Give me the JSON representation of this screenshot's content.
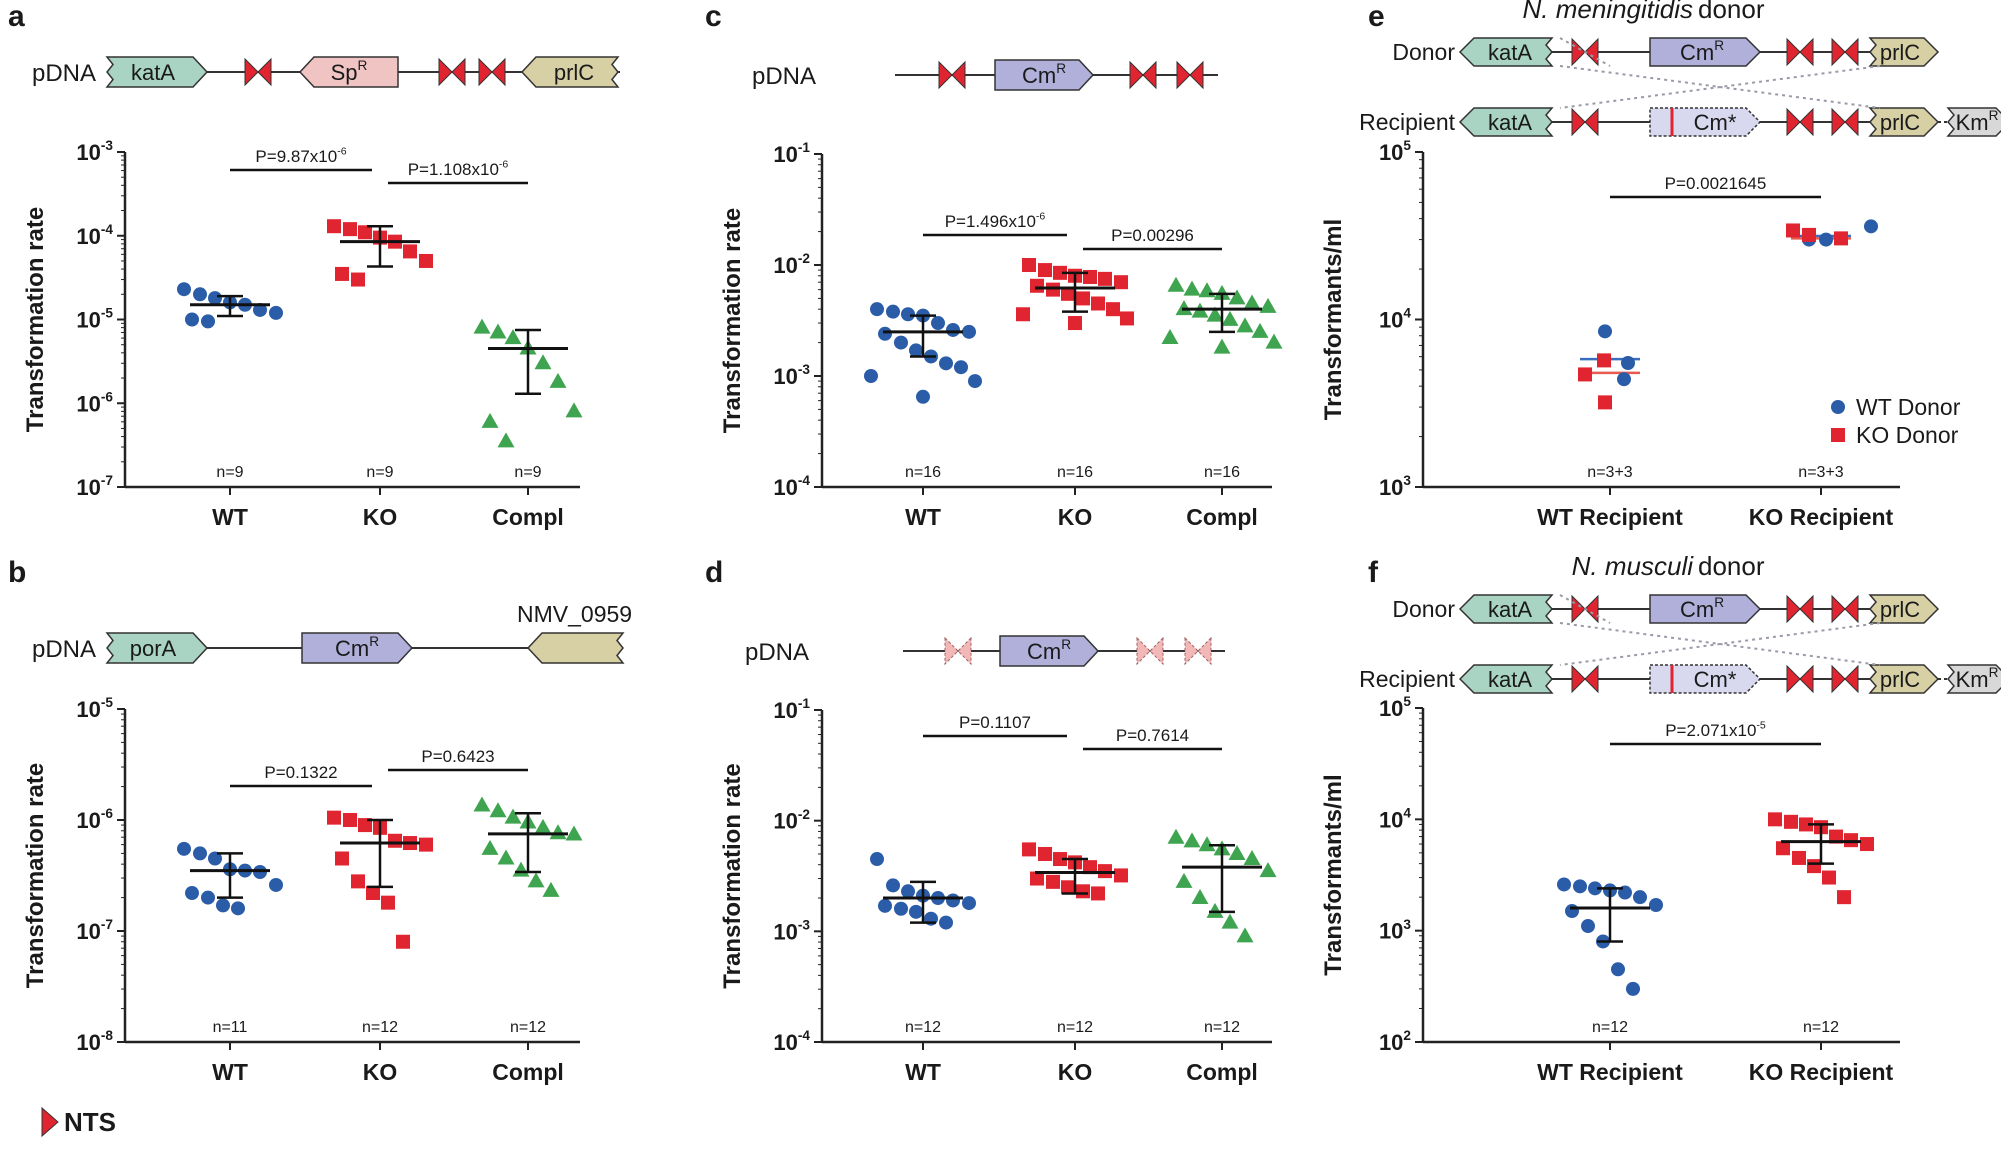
{
  "colors": {
    "wt": "#2a5ca8",
    "ko": "#e02530",
    "compl": "#3fa44f",
    "nts": "#e02530",
    "nts_faded": "#f2b8b8",
    "green_gene": "#a9d3c2",
    "olive_gene": "#d6d0a4",
    "pink_gene": "#f1c4c4",
    "purple_gene": "#b0b0da",
    "light_purple_gene": "#d8d8ee",
    "gray_gene": "#d8d8d8",
    "cross_line": "#9a9aa8",
    "median_line": "#e85a4f",
    "mean_line": "#3a6cc0"
  },
  "legend_nts": "NTS",
  "chart_data": [
    {
      "panel": "a",
      "type": "scatter",
      "construct": {
        "prefix": "pDNA",
        "genes": [
          {
            "label": "katA",
            "color": "green_gene",
            "dir": "right"
          },
          {
            "label": "SpR",
            "label_main": "Sp",
            "label_sup": "R",
            "color": "pink_gene",
            "dir": "left"
          },
          {
            "label": "prlC",
            "color": "olive_gene",
            "dir": "left"
          }
        ],
        "nts_count": 3
      },
      "ylabel": "Transformation rate",
      "yscale": "log",
      "ylim": [
        1e-07,
        0.001
      ],
      "yticks": [
        {
          "base": "10",
          "exp": "-3"
        },
        {
          "base": "10",
          "exp": "-4"
        },
        {
          "base": "10",
          "exp": "-5"
        },
        {
          "base": "10",
          "exp": "-6"
        },
        {
          "base": "10",
          "exp": "-7"
        }
      ],
      "categories": [
        "WT",
        "KO",
        "Compl"
      ],
      "n_labels": [
        "n=9",
        "n=9",
        "n=9"
      ],
      "series": [
        {
          "name": "WT",
          "color": "wt",
          "shape": "circle",
          "values": [
            2.3e-05,
            2e-05,
            1.8e-05,
            1.6e-05,
            1.5e-05,
            1.3e-05,
            1.2e-05,
            1e-05,
            9.5e-06
          ],
          "mean": 1.5e-05,
          "sd_low": 1.1e-05,
          "sd_high": 1.9e-05
        },
        {
          "name": "KO",
          "color": "ko",
          "shape": "square",
          "values": [
            0.00013,
            0.00012,
            0.00011,
            9.5e-05,
            8.5e-05,
            6.5e-05,
            5e-05,
            3.5e-05,
            3e-05
          ],
          "mean": 8.5e-05,
          "sd_low": 4.3e-05,
          "sd_high": 0.00013
        },
        {
          "name": "Compl",
          "color": "compl",
          "shape": "triangle",
          "values": [
            8e-06,
            7e-06,
            6e-06,
            4.5e-06,
            3e-06,
            1.8e-06,
            8e-07,
            6e-07,
            3.5e-07
          ],
          "mean": 4.5e-06,
          "sd_low": 1.3e-06,
          "sd_high": 7.5e-06
        }
      ],
      "pvalues": [
        {
          "main": "P=9.87x10",
          "exp": "-6",
          "from": 0,
          "to": 1
        },
        {
          "main": "P=1.108x10",
          "exp": "-6",
          "from": 1,
          "to": 2
        }
      ]
    },
    {
      "panel": "b",
      "type": "scatter",
      "construct": {
        "prefix": "pDNA",
        "genes": [
          {
            "label": "porA",
            "color": "green_gene",
            "dir": "right"
          },
          {
            "label": "CmR",
            "label_main": "Cm",
            "label_sup": "R",
            "color": "purple_gene",
            "dir": "right"
          },
          {
            "label": "",
            "color": "olive_gene",
            "dir": "left"
          }
        ],
        "nts_count": 0,
        "annotation": "NMV_0959"
      },
      "ylabel": "Transformation rate",
      "yscale": "log",
      "ylim": [
        1e-08,
        1e-05
      ],
      "yticks": [
        {
          "base": "10",
          "exp": "-5"
        },
        {
          "base": "10",
          "exp": "-6"
        },
        {
          "base": "10",
          "exp": "-7"
        },
        {
          "base": "10",
          "exp": "-8"
        }
      ],
      "categories": [
        "WT",
        "KO",
        "Compl"
      ],
      "n_labels": [
        "n=11",
        "n=12",
        "n=12"
      ],
      "series": [
        {
          "name": "WT",
          "color": "wt",
          "shape": "circle",
          "values": [
            5.5e-07,
            5e-07,
            4.5e-07,
            3.6e-07,
            3.5e-07,
            3.4e-07,
            2.6e-07,
            2.2e-07,
            2e-07,
            1.7e-07,
            1.6e-07
          ],
          "mean": 3.5e-07,
          "sd_low": 2e-07,
          "sd_high": 5e-07
        },
        {
          "name": "KO",
          "color": "ko",
          "shape": "square",
          "values": [
            1.05e-06,
            1e-06,
            9e-07,
            8.5e-07,
            6.5e-07,
            6.2e-07,
            6e-07,
            4.5e-07,
            2.8e-07,
            2.2e-07,
            1.8e-07,
            8e-08
          ],
          "mean": 6.2e-07,
          "sd_low": 2.5e-07,
          "sd_high": 1e-06
        },
        {
          "name": "Compl",
          "color": "compl",
          "shape": "triangle",
          "values": [
            1.35e-06,
            1.2e-06,
            1.05e-06,
            9.5e-07,
            8.5e-07,
            7.6e-07,
            7.4e-07,
            5.5e-07,
            4.5e-07,
            3.5e-07,
            2.8e-07,
            2.3e-07
          ],
          "mean": 7.5e-07,
          "sd_low": 3.4e-07,
          "sd_high": 1.15e-06
        }
      ],
      "pvalues": [
        {
          "main": "P=0.1322",
          "exp": "",
          "from": 0,
          "to": 1
        },
        {
          "main": "P=0.6423",
          "exp": "",
          "from": 1,
          "to": 2
        }
      ]
    },
    {
      "panel": "c",
      "type": "scatter",
      "construct": {
        "prefix": "pDNA",
        "genes": [
          {
            "label": "CmR",
            "label_main": "Cm",
            "label_sup": "R",
            "color": "purple_gene",
            "dir": "right"
          }
        ],
        "nts_count": 3
      },
      "ylabel": "Transformation rate",
      "yscale": "log",
      "ylim": [
        0.0001,
        0.1
      ],
      "yticks": [
        {
          "base": "10",
          "exp": "-1"
        },
        {
          "base": "10",
          "exp": "-2"
        },
        {
          "base": "10",
          "exp": "-3"
        },
        {
          "base": "10",
          "exp": "-4"
        }
      ],
      "categories": [
        "WT",
        "KO",
        "Compl"
      ],
      "n_labels": [
        "n=16",
        "n=16",
        "n=16"
      ],
      "series": [
        {
          "name": "WT",
          "color": "wt",
          "shape": "circle",
          "values": [
            0.004,
            0.0038,
            0.0036,
            0.0035,
            0.003,
            0.0026,
            0.0025,
            0.0024,
            0.002,
            0.0017,
            0.0015,
            0.0013,
            0.0012,
            0.001,
            0.0009,
            0.00065
          ],
          "mean": 0.0025,
          "sd_low": 0.0015,
          "sd_high": 0.0035
        },
        {
          "name": "KO",
          "color": "ko",
          "shape": "square",
          "values": [
            0.01,
            0.009,
            0.0085,
            0.008,
            0.0078,
            0.0075,
            0.007,
            0.0065,
            0.006,
            0.0055,
            0.005,
            0.0045,
            0.004,
            0.0036,
            0.0033,
            0.003
          ],
          "mean": 0.0062,
          "sd_low": 0.0038,
          "sd_high": 0.0085
        },
        {
          "name": "Compl",
          "color": "compl",
          "shape": "triangle",
          "values": [
            0.0065,
            0.006,
            0.0058,
            0.0055,
            0.005,
            0.0045,
            0.0042,
            0.004,
            0.0038,
            0.0035,
            0.0032,
            0.0028,
            0.0025,
            0.0022,
            0.002,
            0.0018
          ],
          "mean": 0.004,
          "sd_low": 0.0025,
          "sd_high": 0.0055
        }
      ],
      "pvalues": [
        {
          "main": "P=1.496x10",
          "exp": "-6",
          "from": 0,
          "to": 1
        },
        {
          "main": "P=0.00296",
          "exp": "",
          "from": 1,
          "to": 2
        }
      ]
    },
    {
      "panel": "d",
      "type": "scatter",
      "construct": {
        "prefix": "pDNA",
        "genes": [
          {
            "label": "CmR",
            "label_main": "Cm",
            "label_sup": "R",
            "color": "purple_gene",
            "dir": "right"
          }
        ],
        "nts_count": 3,
        "nts_faded": true
      },
      "ylabel": "Transformation rate",
      "yscale": "log",
      "ylim": [
        0.0001,
        0.1
      ],
      "yticks": [
        {
          "base": "10",
          "exp": "-1"
        },
        {
          "base": "10",
          "exp": "-2"
        },
        {
          "base": "10",
          "exp": "-3"
        },
        {
          "base": "10",
          "exp": "-4"
        }
      ],
      "categories": [
        "WT",
        "KO",
        "Compl"
      ],
      "n_labels": [
        "n=12",
        "n=12",
        "n=12"
      ],
      "series": [
        {
          "name": "WT",
          "color": "wt",
          "shape": "circle",
          "values": [
            0.0045,
            0.0026,
            0.0023,
            0.0021,
            0.002,
            0.0019,
            0.0018,
            0.0017,
            0.0016,
            0.0015,
            0.0013,
            0.0012
          ],
          "mean": 0.002,
          "sd_low": 0.0012,
          "sd_high": 0.0028
        },
        {
          "name": "KO",
          "color": "ko",
          "shape": "square",
          "values": [
            0.0055,
            0.005,
            0.0045,
            0.0042,
            0.0038,
            0.0035,
            0.0032,
            0.003,
            0.0028,
            0.0025,
            0.0023,
            0.0022
          ],
          "mean": 0.0034,
          "sd_low": 0.0022,
          "sd_high": 0.0045
        },
        {
          "name": "Compl",
          "color": "compl",
          "shape": "triangle",
          "values": [
            0.007,
            0.0065,
            0.006,
            0.0055,
            0.005,
            0.0045,
            0.0035,
            0.0028,
            0.002,
            0.0015,
            0.0012,
            0.0009
          ],
          "mean": 0.0038,
          "sd_low": 0.0015,
          "sd_high": 0.006
        }
      ],
      "pvalues": [
        {
          "main": "P=0.1107",
          "exp": "",
          "from": 0,
          "to": 1
        },
        {
          "main": "P=0.7614",
          "exp": "",
          "from": 1,
          "to": 2
        }
      ]
    },
    {
      "panel": "e",
      "type": "scatter",
      "title": "N. meningitidis donor",
      "construct_rows": [
        {
          "label": "Donor",
          "genes": [
            "katA",
            "CmR",
            "prlC"
          ]
        },
        {
          "label": "Recipient",
          "genes": [
            "katA",
            "Cm*",
            "prlC",
            "KmR"
          ]
        }
      ],
      "ylabel": "Transformants/ml",
      "yscale": "log",
      "ylim": [
        1000,
        100000
      ],
      "yticks": [
        {
          "base": "10",
          "exp": "5"
        },
        {
          "base": "10",
          "exp": "4"
        },
        {
          "base": "10",
          "exp": "3"
        }
      ],
      "categories": [
        "WT Recipient",
        "KO Recipient"
      ],
      "n_labels": [
        "n=3+3",
        "n=3+3"
      ],
      "series": [
        {
          "name": "WT Donor",
          "color": "wt",
          "shape": "circle",
          "values_by_cat": [
            [
              8500,
              5500,
              4400
            ],
            [
              36000,
              30000,
              30000
            ]
          ]
        },
        {
          "name": "KO Donor",
          "color": "ko",
          "shape": "square",
          "values_by_cat": [
            [
              5700,
              4700,
              3200
            ],
            [
              34000,
              32000,
              30500
            ]
          ]
        }
      ],
      "summary_lines": [
        {
          "cat": 0,
          "mean": 5800,
          "median": 4800
        },
        {
          "cat": 1,
          "mean": 31500,
          "median": 30500
        }
      ],
      "legend": [
        "WT Donor",
        "KO Donor"
      ],
      "pvalues": [
        {
          "main": "P=0.0021645",
          "exp": "",
          "from": 0,
          "to": 1
        }
      ]
    },
    {
      "panel": "f",
      "type": "scatter",
      "title": "N. musculi donor",
      "construct_rows": [
        {
          "label": "Donor",
          "genes": [
            "katA",
            "CmR",
            "prlC"
          ]
        },
        {
          "label": "Recipient",
          "genes": [
            "katA",
            "Cm*",
            "prlC",
            "KmR"
          ]
        }
      ],
      "ylabel": "Transformants/ml",
      "yscale": "log",
      "ylim": [
        100,
        100000
      ],
      "yticks": [
        {
          "base": "10",
          "exp": "5"
        },
        {
          "base": "10",
          "exp": "4"
        },
        {
          "base": "10",
          "exp": "3"
        },
        {
          "base": "10",
          "exp": "2"
        }
      ],
      "categories": [
        "WT Recipient",
        "KO Recipient"
      ],
      "n_labels": [
        "n=12",
        "n=12"
      ],
      "series": [
        {
          "name": "WT",
          "color": "wt",
          "shape": "circle",
          "values": [
            2600,
            2500,
            2400,
            2300,
            2200,
            2000,
            1700,
            1500,
            1100,
            800,
            450,
            300
          ],
          "mean": 1600,
          "sd_low": 800,
          "sd_high": 2400
        },
        {
          "name": "KO",
          "color": "ko",
          "shape": "square",
          "values": [
            10000,
            9500,
            9000,
            8500,
            7000,
            6500,
            6000,
            5500,
            4500,
            3800,
            3000,
            2000
          ],
          "mean": 6300,
          "sd_low": 4000,
          "sd_high": 9000
        }
      ],
      "pvalues": [
        {
          "main": "P=2.071x10",
          "exp": "-5",
          "from": 0,
          "to": 1
        }
      ]
    }
  ]
}
